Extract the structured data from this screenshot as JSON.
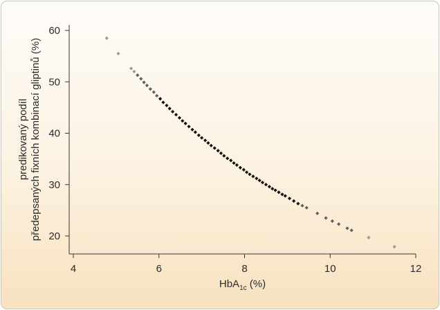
{
  "chart_data": {
    "type": "scatter",
    "xlabel": {
      "main": "HbA",
      "subscript": "1c",
      "suffix": " (%)"
    },
    "ylabel": [
      "predikovaný podíl",
      "předepsaných fixních kombinací gliptinů (%)"
    ],
    "xlim": [
      4,
      12
    ],
    "ylim": [
      17,
      61
    ],
    "xticks": [
      4,
      6,
      8,
      10,
      12
    ],
    "yticks": [
      20,
      30,
      40,
      50,
      60
    ],
    "grid": false,
    "legend": "none",
    "colors": {
      "light": "#9a9a9a",
      "mid": "#5e5e5e",
      "dark": "#111111"
    },
    "series": [
      {
        "x": [
          4.78,
          5.05,
          5.35,
          5.42,
          5.5,
          5.58,
          5.65,
          5.72,
          5.8,
          5.88,
          5.95,
          6.03,
          6.1,
          6.18,
          6.25,
          6.32,
          6.4,
          6.48,
          6.55,
          6.62,
          6.7,
          6.78,
          6.85,
          6.93,
          7.0,
          7.08,
          7.15,
          7.22,
          7.3,
          7.38,
          7.45,
          7.52,
          7.6,
          7.68,
          7.75,
          7.82,
          7.9,
          7.98,
          8.05,
          8.12,
          8.2,
          8.28,
          8.35,
          8.42,
          8.5,
          8.58,
          8.65,
          8.72,
          8.8,
          8.88,
          8.95,
          9.05,
          9.15,
          9.25,
          9.35,
          9.45,
          9.7,
          9.9,
          10.05,
          10.2,
          10.4,
          10.5,
          10.9,
          11.5
        ],
        "y": [
          58.5,
          55.5,
          52.6,
          52.0,
          51.3,
          50.6,
          49.9,
          49.3,
          48.6,
          48.0,
          47.3,
          46.7,
          46.0,
          45.4,
          44.8,
          44.2,
          43.6,
          43.0,
          42.4,
          41.9,
          41.3,
          40.7,
          40.2,
          39.6,
          39.1,
          38.6,
          38.1,
          37.6,
          37.1,
          36.6,
          36.1,
          35.6,
          35.1,
          34.7,
          34.2,
          33.8,
          33.3,
          32.9,
          32.4,
          32.0,
          31.6,
          31.2,
          30.8,
          30.4,
          30.0,
          29.6,
          29.2,
          28.9,
          28.5,
          28.1,
          27.8,
          27.3,
          26.8,
          26.3,
          25.9,
          25.5,
          24.4,
          23.5,
          22.9,
          22.3,
          21.5,
          21.1,
          19.7,
          17.9
        ]
      }
    ]
  }
}
